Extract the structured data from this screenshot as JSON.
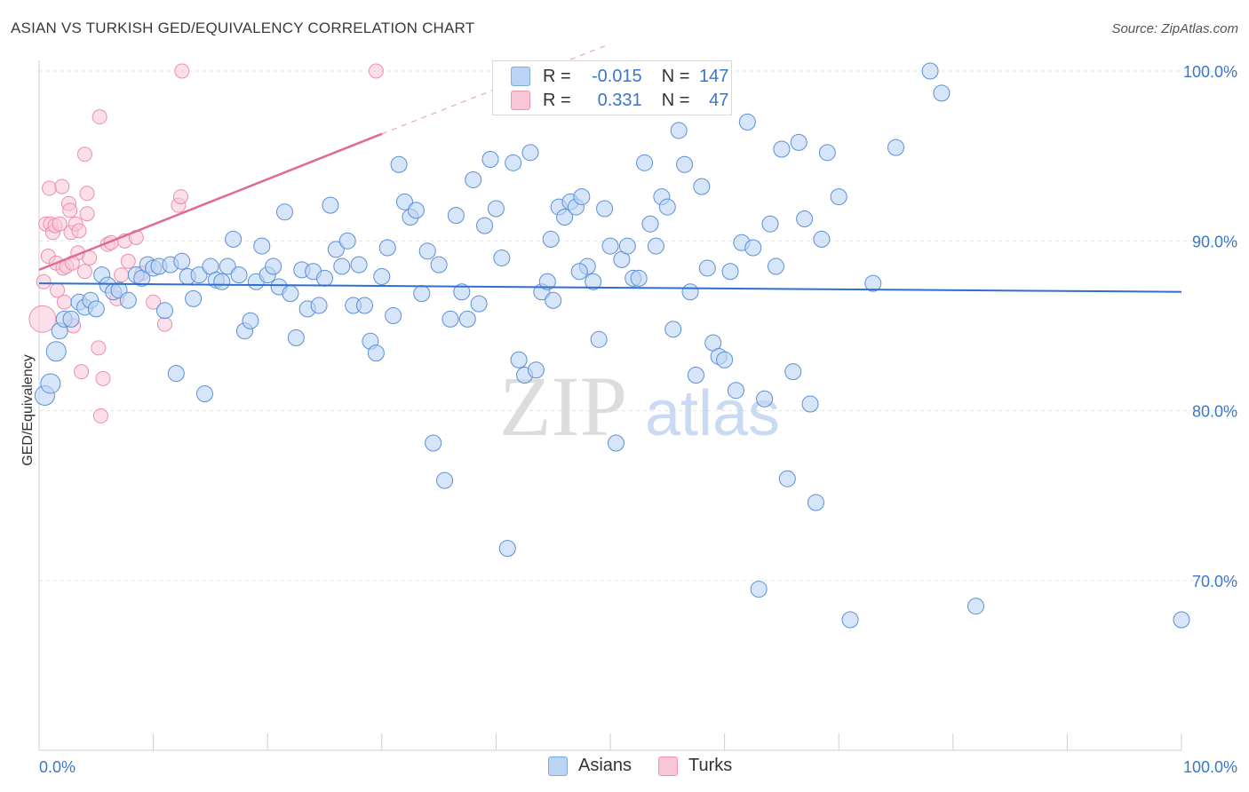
{
  "header": {
    "title": "ASIAN VS TURKISH GED/EQUIVALENCY CORRELATION CHART",
    "source": "Source: ZipAtlas.com"
  },
  "legend": {
    "rows": [
      {
        "r_label": "R =",
        "r_value": "-0.015",
        "n_label": "N =",
        "n_value": "147"
      },
      {
        "r_label": "R =",
        "r_value": "0.331",
        "n_label": "N =",
        "n_value": "47"
      }
    ],
    "series": [
      "Asians",
      "Turks"
    ]
  },
  "watermark": {
    "zip": "ZIP",
    "atlas": "atlas"
  },
  "colors": {
    "asians_fill": "#bcd4f4",
    "asians_stroke": "#5b8fd8",
    "asians_line": "#2f6fcf",
    "turks_fill": "#f9c6d7",
    "turks_stroke": "#ec8eae",
    "turks_line": "#e06a94",
    "tick_label": "#3a76c9",
    "grid": "#e3e3e3"
  },
  "chart_data": {
    "type": "scatter",
    "title": "ASIAN VS TURKISH GED/EQUIVALENCY CORRELATION CHART",
    "xlabel": "",
    "ylabel": "GED/Equivalency",
    "xlim": [
      0,
      100
    ],
    "ylim": [
      60,
      102
    ],
    "x_tick_labels": [
      "0.0%",
      "100.0%"
    ],
    "y_ticks": [
      70,
      80,
      90,
      100
    ],
    "y_tick_labels": [
      "70.0%",
      "80.0%",
      "90.0%",
      "100.0%"
    ],
    "grid": true,
    "series": [
      {
        "name": "Asians",
        "r": -0.015,
        "n": 147,
        "trend": {
          "x": [
            0,
            100
          ],
          "y": [
            87.5,
            87.0
          ]
        },
        "points": [
          [
            0.5,
            80.9
          ],
          [
            1.0,
            81.6
          ],
          [
            1.5,
            83.5
          ],
          [
            1.8,
            84.7
          ],
          [
            2.2,
            85.4
          ],
          [
            2.8,
            85.4
          ],
          [
            3.5,
            86.4
          ],
          [
            4.0,
            86.1
          ],
          [
            4.5,
            86.5
          ],
          [
            5.0,
            86.0
          ],
          [
            5.5,
            88.0
          ],
          [
            6.0,
            87.4
          ],
          [
            6.5,
            87.0
          ],
          [
            7.0,
            87.1
          ],
          [
            7.8,
            86.5
          ],
          [
            8.5,
            88.0
          ],
          [
            9.0,
            87.8
          ],
          [
            9.5,
            88.6
          ],
          [
            10.0,
            88.4
          ],
          [
            10.5,
            88.5
          ],
          [
            11.0,
            85.9
          ],
          [
            11.5,
            88.6
          ],
          [
            12.0,
            82.2
          ],
          [
            12.5,
            88.8
          ],
          [
            13.0,
            87.9
          ],
          [
            13.5,
            86.6
          ],
          [
            14.0,
            88.0
          ],
          [
            14.5,
            81.0
          ],
          [
            15.0,
            88.5
          ],
          [
            15.5,
            87.7
          ],
          [
            16.0,
            87.6
          ],
          [
            16.5,
            88.5
          ],
          [
            17.0,
            90.1
          ],
          [
            17.5,
            88.0
          ],
          [
            18.0,
            84.7
          ],
          [
            18.5,
            85.3
          ],
          [
            19.0,
            87.6
          ],
          [
            19.5,
            89.7
          ],
          [
            20.0,
            88.0
          ],
          [
            20.5,
            88.5
          ],
          [
            21.0,
            87.3
          ],
          [
            21.5,
            91.7
          ],
          [
            22.0,
            86.9
          ],
          [
            22.5,
            84.3
          ],
          [
            23.0,
            88.3
          ],
          [
            23.5,
            86.0
          ],
          [
            24.0,
            88.2
          ],
          [
            24.5,
            86.2
          ],
          [
            25.0,
            87.8
          ],
          [
            25.5,
            92.1
          ],
          [
            26.0,
            89.5
          ],
          [
            26.5,
            88.5
          ],
          [
            27.0,
            90.0
          ],
          [
            27.5,
            86.2
          ],
          [
            28.0,
            88.6
          ],
          [
            28.5,
            86.2
          ],
          [
            29.0,
            84.1
          ],
          [
            29.5,
            83.4
          ],
          [
            30.0,
            87.9
          ],
          [
            30.5,
            89.6
          ],
          [
            31.0,
            85.6
          ],
          [
            31.5,
            94.5
          ],
          [
            32.0,
            92.3
          ],
          [
            32.5,
            91.4
          ],
          [
            33.0,
            91.8
          ],
          [
            33.5,
            86.9
          ],
          [
            34.0,
            89.4
          ],
          [
            34.5,
            78.1
          ],
          [
            35.0,
            88.6
          ],
          [
            35.5,
            75.9
          ],
          [
            36.0,
            85.4
          ],
          [
            36.5,
            91.5
          ],
          [
            37.0,
            87.0
          ],
          [
            37.5,
            85.4
          ],
          [
            38.0,
            93.6
          ],
          [
            38.5,
            86.3
          ],
          [
            39.0,
            90.9
          ],
          [
            39.5,
            94.8
          ],
          [
            40.0,
            91.9
          ],
          [
            40.5,
            89.0
          ],
          [
            41.0,
            71.9
          ],
          [
            41.5,
            94.6
          ],
          [
            42.0,
            83.0
          ],
          [
            42.5,
            82.1
          ],
          [
            43.0,
            95.2
          ],
          [
            43.5,
            82.4
          ],
          [
            44.0,
            87.0
          ],
          [
            44.5,
            87.6
          ],
          [
            45.0,
            86.5
          ],
          [
            45.5,
            92.0
          ],
          [
            46.0,
            91.4
          ],
          [
            46.5,
            92.3
          ],
          [
            47.0,
            92.0
          ],
          [
            47.5,
            92.6
          ],
          [
            48.0,
            88.5
          ],
          [
            48.5,
            87.6
          ],
          [
            49.0,
            84.2
          ],
          [
            49.5,
            91.9
          ],
          [
            50.0,
            89.7
          ],
          [
            50.5,
            78.1
          ],
          [
            51.0,
            88.9
          ],
          [
            51.5,
            89.7
          ],
          [
            52.0,
            87.8
          ],
          [
            52.5,
            87.8
          ],
          [
            53.0,
            94.6
          ],
          [
            53.5,
            91.0
          ],
          [
            54.0,
            89.7
          ],
          [
            54.5,
            92.6
          ],
          [
            55.0,
            92.0
          ],
          [
            55.5,
            84.8
          ],
          [
            56.0,
            96.5
          ],
          [
            56.5,
            94.5
          ],
          [
            57.0,
            87.0
          ],
          [
            57.5,
            82.1
          ],
          [
            58.0,
            93.2
          ],
          [
            58.5,
            88.4
          ],
          [
            59.0,
            84.0
          ],
          [
            59.5,
            83.2
          ],
          [
            60.0,
            83.0
          ],
          [
            60.5,
            88.2
          ],
          [
            61.0,
            81.2
          ],
          [
            61.5,
            89.9
          ],
          [
            62.0,
            97.0
          ],
          [
            62.5,
            89.6
          ],
          [
            63.0,
            69.5
          ],
          [
            63.5,
            80.7
          ],
          [
            64.0,
            91.0
          ],
          [
            64.5,
            88.5
          ],
          [
            65.0,
            95.4
          ],
          [
            65.5,
            76.0
          ],
          [
            66.0,
            82.3
          ],
          [
            66.5,
            95.8
          ],
          [
            67.0,
            91.3
          ],
          [
            67.5,
            80.4
          ],
          [
            68.0,
            74.6
          ],
          [
            68.5,
            90.1
          ],
          [
            69.0,
            95.2
          ],
          [
            70.0,
            92.6
          ],
          [
            71.0,
            67.7
          ],
          [
            73.0,
            87.5
          ],
          [
            75.0,
            95.5
          ],
          [
            78.0,
            100.0
          ],
          [
            79.0,
            98.7
          ],
          [
            82.0,
            68.5
          ],
          [
            100.0,
            67.7
          ],
          [
            44.8,
            90.1
          ],
          [
            47.3,
            88.2
          ]
        ]
      },
      {
        "name": "Turks",
        "r": 0.331,
        "n": 47,
        "trend": {
          "x": [
            0,
            30
          ],
          "y": [
            88.3,
            96.3
          ]
        },
        "trend_dashed": {
          "x": [
            30,
            50
          ],
          "y": [
            96.3,
            101.6
          ]
        },
        "points": [
          [
            0.3,
            85.4
          ],
          [
            0.4,
            87.6
          ],
          [
            0.6,
            91.0
          ],
          [
            0.8,
            89.1
          ],
          [
            0.9,
            93.1
          ],
          [
            1.0,
            91.0
          ],
          [
            1.2,
            90.5
          ],
          [
            1.4,
            90.9
          ],
          [
            1.5,
            88.7
          ],
          [
            1.6,
            87.1
          ],
          [
            1.8,
            91.0
          ],
          [
            2.0,
            93.2
          ],
          [
            2.1,
            88.4
          ],
          [
            2.2,
            86.4
          ],
          [
            2.4,
            88.5
          ],
          [
            2.6,
            92.2
          ],
          [
            2.7,
            91.8
          ],
          [
            2.8,
            90.5
          ],
          [
            3.0,
            85.0
          ],
          [
            3.2,
            91.0
          ],
          [
            3.4,
            89.3
          ],
          [
            3.5,
            90.6
          ],
          [
            3.7,
            82.3
          ],
          [
            4.0,
            88.2
          ],
          [
            4.2,
            91.6
          ],
          [
            4.4,
            89.0
          ],
          [
            4.2,
            92.8
          ],
          [
            4.0,
            95.1
          ],
          [
            5.2,
            83.7
          ],
          [
            5.4,
            79.7
          ],
          [
            5.3,
            97.3
          ],
          [
            5.6,
            81.9
          ],
          [
            6.0,
            89.8
          ],
          [
            6.3,
            89.9
          ],
          [
            6.8,
            86.6
          ],
          [
            7.2,
            88.0
          ],
          [
            7.5,
            90.0
          ],
          [
            7.8,
            88.8
          ],
          [
            8.5,
            90.2
          ],
          [
            9.0,
            88.1
          ],
          [
            10.0,
            86.4
          ],
          [
            11.0,
            85.1
          ],
          [
            12.2,
            92.1
          ],
          [
            12.4,
            92.6
          ],
          [
            12.5,
            100.0
          ],
          [
            29.5,
            100.0
          ],
          [
            2.9,
            88.7
          ]
        ]
      }
    ]
  }
}
